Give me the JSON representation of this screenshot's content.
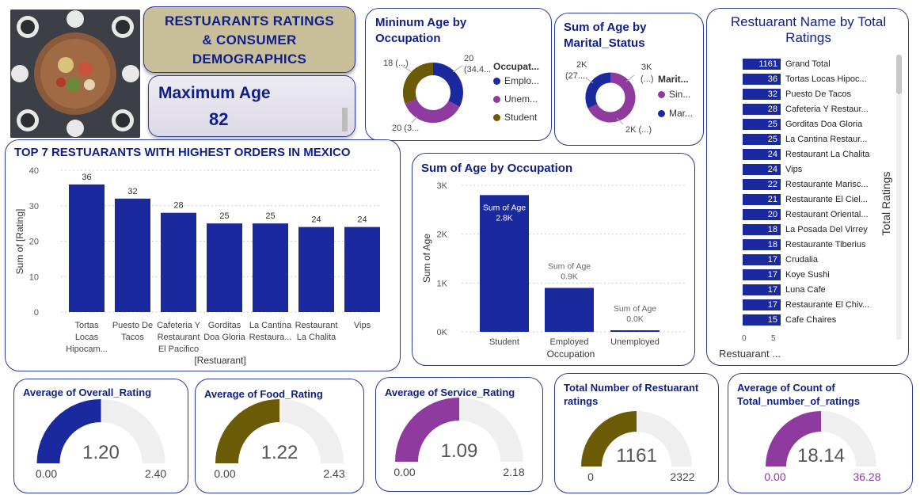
{
  "banner": {
    "line1": "RESTUARANTS RATINGS",
    "line2": "& CONSUMER",
    "line3": "DEMOGRAPHICS"
  },
  "max_age": {
    "label": "Maximum Age",
    "value": "82"
  },
  "colors": {
    "navy": "#1a2a9e",
    "olive": "#6b5a06",
    "purple": "#8e3a9e",
    "gray": "#efefef",
    "title": "#0f1f8a"
  },
  "donut_occupation": {
    "title": "Mininum Age by Occupation",
    "legend_title": "Occupat...",
    "labels": {
      "top_left": "18 (...)",
      "top_right_1": "20",
      "top_right_2": "(34.4...",
      "bottom": "20 (3..."
    },
    "legend": [
      "Emplo...",
      "Unem...",
      "Student"
    ]
  },
  "donut_marital": {
    "title": "Sum of Age by Marital_Status",
    "legend_title": "Marit...",
    "labels": {
      "left_1": "2K",
      "left_2": "(27....",
      "right_1": "3K",
      "right_2": "(...)",
      "bottom": "2K (...)"
    },
    "legend": [
      "Sin...",
      "Mar..."
    ]
  },
  "rank": {
    "title": "Restuarant Name by Total Ratings",
    "axis_title": "Total Ratings",
    "x_title": "Restuarant ...",
    "tick_0": "0",
    "tick_5": "5",
    "rows": [
      {
        "v": "1161",
        "n": "Grand Total"
      },
      {
        "v": "36",
        "n": "Tortas Locas Hipoc..."
      },
      {
        "v": "32",
        "n": "Puesto De Tacos"
      },
      {
        "v": "28",
        "n": "Cafeteria Y Restaur..."
      },
      {
        "v": "25",
        "n": "Gorditas Doa Gloria"
      },
      {
        "v": "25",
        "n": "La Cantina Restaur..."
      },
      {
        "v": "24",
        "n": "Restaurant La Chalita"
      },
      {
        "v": "24",
        "n": "Vips"
      },
      {
        "v": "22",
        "n": "Restaurante Marisc..."
      },
      {
        "v": "21",
        "n": "Restaurante El Ciel..."
      },
      {
        "v": "20",
        "n": "Restaurant Oriental..."
      },
      {
        "v": "18",
        "n": "La Posada Del Virrey"
      },
      {
        "v": "18",
        "n": "Restaurante Tiberius"
      },
      {
        "v": "17",
        "n": "Crudalia"
      },
      {
        "v": "17",
        "n": "Koye Sushi"
      },
      {
        "v": "17",
        "n": "Luna Cafe"
      },
      {
        "v": "17",
        "n": "Restaurante El Chiv..."
      },
      {
        "v": "15",
        "n": "Cafe Chaires"
      }
    ]
  },
  "top7": {
    "title": "TOP 7 RESTUARANTS WITH HIGHEST ORDERS IN MEXICO",
    "ylabel": "Sum of [Rating]",
    "xlabel": "[Restuarant]",
    "ticks": [
      "0",
      "10",
      "20",
      "30",
      "40"
    ],
    "cat_lines": [
      [
        "Tortas",
        "Locas",
        "Hipocam..."
      ],
      [
        "Puesto De",
        "Tacos"
      ],
      [
        "Cafeteria Y",
        "Restaurant",
        "El Pacifico"
      ],
      [
        "Gorditas",
        "Doa Gloria"
      ],
      [
        "La Cantina",
        "Restaura..."
      ],
      [
        "Restaurant",
        "La Chalita"
      ],
      [
        "Vips"
      ]
    ],
    "value_labels": [
      "36",
      "32",
      "28",
      "25",
      "25",
      "24",
      "24"
    ]
  },
  "occ_sum": {
    "title": "Sum of Age by Occupation",
    "ylabel": "Sum of Age",
    "xlabel": "Occupation",
    "ticks": [
      "0K",
      "1K",
      "2K",
      "3K"
    ],
    "cats": [
      "Student",
      "Employed",
      "Unemployed"
    ],
    "label_name": "Sum of Age",
    "value_labels": [
      "2.8K",
      "0.9K",
      "0.0K"
    ]
  },
  "gauges": [
    {
      "title": "Average of Overall_Rating",
      "value": "1.20",
      "min": "0.00",
      "max": "2.40",
      "fill": 0.5,
      "color": "#1a2a9e"
    },
    {
      "title": "Average of Food_Rating",
      "value": "1.22",
      "min": "0.00",
      "max": "2.43",
      "fill": 0.5,
      "color": "#6b5a06"
    },
    {
      "title": "Average of Service_Rating",
      "value": "1.09",
      "min": "0.00",
      "max": "2.18",
      "fill": 0.5,
      "color": "#8e3a9e"
    },
    {
      "title_1": "Total Number of Restuarant",
      "title_2": "ratings",
      "value": "1161",
      "min": "0",
      "max": "2322",
      "fill": 0.5,
      "color": "#6b5a06"
    },
    {
      "title_1": "Average of Count of",
      "title_2": "Total_number_of_ratings",
      "value": "18.14",
      "min": "0.00",
      "max": "36.28",
      "fill": 0.5,
      "color": "#8e3a9e"
    }
  ],
  "chart_data": [
    {
      "type": "bar",
      "title": "TOP 7 RESTUARANTS WITH HIGHEST ORDERS IN MEXICO",
      "categories": [
        "Tortas Locas Hipocam...",
        "Puesto De Tacos",
        "Cafeteria Y Restaurant El Pacifico",
        "Gorditas Doa Gloria",
        "La Cantina Restaura...",
        "Restaurant La Chalita",
        "Vips"
      ],
      "values": [
        36,
        32,
        28,
        25,
        25,
        24,
        24
      ],
      "xlabel": "[Restuarant]",
      "ylabel": "Sum of [Rating]",
      "ylim": [
        0,
        40
      ]
    },
    {
      "type": "bar",
      "title": "Sum of Age by Occupation",
      "categories": [
        "Student",
        "Employed",
        "Unemployed"
      ],
      "values": [
        2800,
        900,
        0
      ],
      "xlabel": "Occupation",
      "ylabel": "Sum of Age",
      "ylim": [
        0,
        3000
      ]
    },
    {
      "type": "pie",
      "title": "Mininum Age by Occupation",
      "categories": [
        "Emplo...",
        "Unem...",
        "Student"
      ],
      "values": [
        20,
        20,
        18
      ]
    },
    {
      "type": "pie",
      "title": "Sum of Age by Marital_Status",
      "categories": [
        "Sin...",
        "Mar..."
      ],
      "values": [
        3,
        2
      ]
    },
    {
      "type": "bar",
      "title": "Restuarant Name by Total Ratings",
      "categories": [
        "Grand Total",
        "Tortas Locas Hipoc...",
        "Puesto De Tacos",
        "Cafeteria Y Restaur...",
        "Gorditas Doa Gloria",
        "La Cantina Restaur...",
        "Restaurant La Chalita",
        "Vips",
        "Restaurante Marisc...",
        "Restaurante El Ciel...",
        "Restaurant Oriental...",
        "La Posada Del Virrey",
        "Restaurante Tiberius",
        "Crudalia",
        "Koye Sushi",
        "Luna Cafe",
        "Restaurante El Chiv...",
        "Cafe Chaires"
      ],
      "values": [
        1161,
        36,
        32,
        28,
        25,
        25,
        24,
        24,
        22,
        21,
        20,
        18,
        18,
        17,
        17,
        17,
        17,
        15
      ],
      "xlabel": "Restuarant ...",
      "ylabel": "Total Ratings"
    }
  ]
}
